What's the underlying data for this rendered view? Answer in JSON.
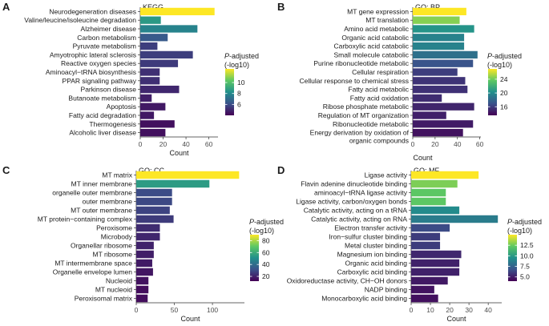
{
  "figure": {
    "type": "multi-panel bar chart"
  },
  "legend_title_letter": "P",
  "legend_title_rest": "-adjusted",
  "legend_title_line2": "(-log10)",
  "colors": {
    "low": "#440154",
    "mid_low": "#3b528b",
    "mid": "#21908c",
    "mid_high": "#5dc863",
    "high": "#fde725"
  },
  "chart_data": [
    {
      "type": "bar",
      "orientation": "horizontal",
      "panel": "A",
      "title": "KEGG",
      "xlabel": "Count",
      "xlim": [
        0,
        68
      ],
      "xticks": [
        0,
        20,
        40,
        60
      ],
      "categories": [
        "Neurodegeneration diseases",
        "Valine/leucine/isoleucine degradation",
        "Alzheimer disease",
        "Carbon metabolism",
        "Pyruvate metabolism",
        "Amyotrophic lateral sclerosis",
        "Reactive oxygen species",
        "Aminoacyl−tRNA biosynthesis",
        "PPAR signaling pathway",
        "Parkinson disease",
        "Butanoate metabolism",
        "Apoptosis",
        "Fatty acid degradation",
        "Thermogenesis",
        "Alcoholic liver disease"
      ],
      "values": [
        65,
        18,
        50,
        24,
        15,
        46,
        33,
        17,
        17,
        34,
        10,
        22,
        12,
        30,
        22
      ],
      "color_values": [
        12.5,
        8.6,
        7.8,
        6.4,
        5.6,
        5.6,
        5.5,
        5.2,
        5.2,
        5.0,
        4.8,
        4.6,
        4.6,
        4.4,
        4.4
      ],
      "colorbar": {
        "min": 4,
        "max": 12.5,
        "ticks": [
          6,
          8,
          10
        ]
      }
    },
    {
      "type": "bar",
      "orientation": "horizontal",
      "panel": "B",
      "title": "GO: BP",
      "xlabel": "Count",
      "xlim": [
        0,
        61
      ],
      "xticks": [
        0,
        20,
        40,
        60
      ],
      "categories": [
        "MT gene expression",
        "MT translation",
        "Amino acid metabolic",
        "Organic acid catabolic",
        "Carboxylic acid catabolic",
        "Small molecule catabolic",
        "Purine ribonucleotide metabolic",
        "Cellular respiration",
        "Cellular response to chemical stress",
        "Fatty acid metabolic",
        "Fatty acid oxidation",
        "Ribose phosphate metabolic",
        "Regulation of MT organization",
        "Ribonucleotide metabolic",
        "Energy derivation by oxidation of organic compounds"
      ],
      "values": [
        48,
        42,
        55,
        46,
        46,
        58,
        54,
        40,
        47,
        49,
        26,
        55,
        30,
        54,
        45
      ],
      "color_values": [
        27,
        24.5,
        20.5,
        19.5,
        19.5,
        18.5,
        17,
        16,
        15.6,
        15.5,
        15.3,
        15,
        14.8,
        14.6,
        14.2
      ],
      "colorbar": {
        "min": 13.5,
        "max": 27,
        "ticks": [
          16,
          20,
          24
        ]
      }
    },
    {
      "type": "bar",
      "orientation": "horizontal",
      "panel": "C",
      "title": "GO: CC",
      "xlabel": "Count",
      "xlim": [
        0,
        142
      ],
      "xticks": [
        0,
        50,
        100
      ],
      "categories": [
        "MT matrix",
        "MT inner membrane",
        "organelle outer membrane",
        "outer membrane",
        "MT outer membrane",
        "MT protein−containing complex",
        "Peroxisome",
        "Microbody",
        "Organellar ribosome",
        "MT ribosome",
        "MT intermembrane space",
        "Organelle envelope lumen",
        "Nucleoid",
        "MT nucleoid",
        "Peroxisomal matrix"
      ],
      "values": [
        135,
        96,
        47,
        47,
        44,
        49,
        31,
        31,
        23,
        23,
        21,
        22,
        16,
        16,
        15
      ],
      "color_values": [
        90,
        55,
        30,
        29,
        28,
        26,
        22,
        21,
        20,
        19,
        18,
        17,
        16,
        15,
        15
      ],
      "colorbar": {
        "min": 12,
        "max": 90,
        "ticks": [
          20,
          40,
          60,
          80
        ]
      }
    },
    {
      "type": "bar",
      "orientation": "horizontal",
      "panel": "D",
      "title": "GO: MF",
      "xlabel": "Count",
      "xlim": [
        0,
        47
      ],
      "xticks": [
        0,
        10,
        20,
        30,
        40
      ],
      "categories": [
        "Ligase activity",
        "Flavin adenine dinucleotide binding",
        "aminoacyl−tRNA ligase activity",
        "Ligase activity, carbon/oxygen bonds",
        "Catalytic activity, acting on a tRNA",
        "Catalytic activity, acting on RNA",
        "Electron transfer activity",
        "Iron−sulfur cluster binding",
        "Metal cluster binding",
        "Magnesium ion binding",
        "Organic acid binding",
        "Carboxylic acid binding",
        "Oxidoreductase activity, CH−OH donors",
        "NADP binding",
        "Monocarboxylic acid binding"
      ],
      "values": [
        35,
        24,
        18,
        18,
        25,
        45,
        20,
        15,
        15,
        26,
        25,
        25,
        19,
        12,
        14
      ],
      "color_values": [
        15,
        12.8,
        12.2,
        12.2,
        9.3,
        8.6,
        6.5,
        6.0,
        6.0,
        5.3,
        5.1,
        5.1,
        4.8,
        4.6,
        4.5
      ],
      "colorbar": {
        "min": 4,
        "max": 15,
        "ticks": [
          5.0,
          7.5,
          10.0,
          12.5
        ]
      }
    }
  ]
}
